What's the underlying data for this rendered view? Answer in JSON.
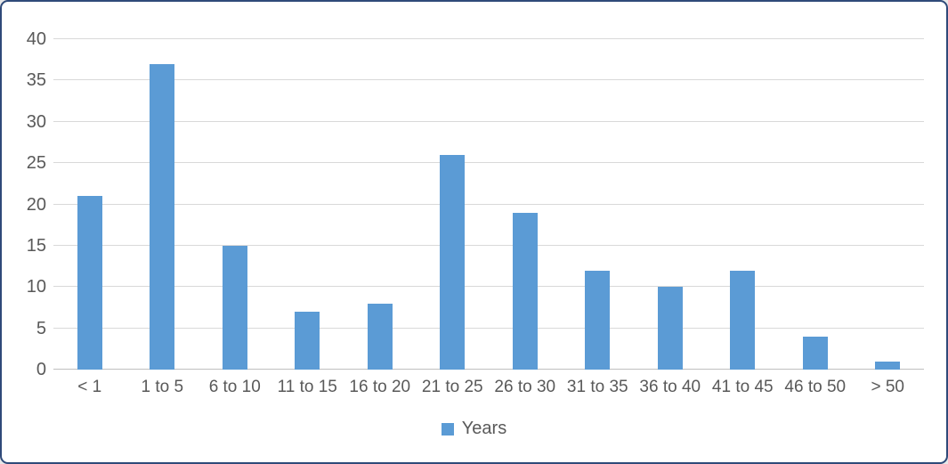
{
  "window": {
    "border_color": "#2f4a79",
    "background_color": "#ffffff"
  },
  "chart_data": {
    "type": "bar",
    "title": "",
    "xlabel": "",
    "ylabel": "",
    "categories": [
      "< 1",
      "1 to 5",
      "6 to 10",
      "11 to 15",
      "16 to 20",
      "21 to 25",
      "26 to 30",
      "31 to 35",
      "36 to 40",
      "41 to 45",
      "46 to 50",
      "> 50"
    ],
    "series": [
      {
        "name": "Years",
        "values": [
          21,
          37,
          15,
          7,
          8,
          26,
          19,
          12,
          10,
          12,
          4,
          1
        ]
      }
    ],
    "ylim": [
      0,
      40
    ],
    "yticks": [
      0,
      5,
      10,
      15,
      20,
      25,
      30,
      35,
      40
    ],
    "grid": true,
    "legend_position": "bottom",
    "bar_color": "#5b9bd5",
    "gridline_color": "#d9d9d9",
    "axis_line_color": "#bfbfbf",
    "text_color": "#595959"
  },
  "legend": {
    "label": "Years",
    "swatch_color": "#5b9bd5"
  }
}
